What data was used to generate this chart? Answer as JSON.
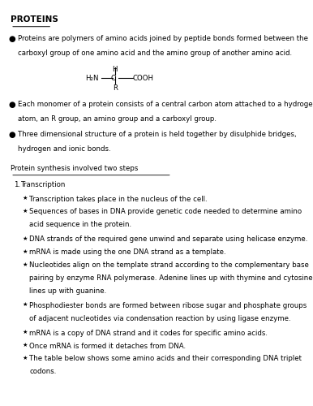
{
  "bg_color": "#ffffff",
  "title": "PROTEINS",
  "bullet1_line1": "Proteins are polymers of amino acids joined by peptide bonds formed between the",
  "bullet1_line2": "carboxyl group of one amino acid and the amino group of another amino acid.",
  "bullet2_line1": "Each monomer of a protein consists of a central carbon atom attached to a hydrogen",
  "bullet2_line2": "atom, an R group, an amino group and a carboxyl group.",
  "bullet3_line1": "Three dimensional structure of a protein is held together by disulphide bridges,",
  "bullet3_line2": "hydrogen and ionic bonds.",
  "subheading": "Protein synthesis involved two steps",
  "numbered1": "Transcription",
  "sub_bullets": [
    "Transcription takes place in the nucleus of the cell.",
    "Sequences of bases in DNA provide genetic code needed to determine amino\nacid sequence in the protein.",
    "DNA strands of the required gene unwind and separate using helicase enzyme.",
    "mRNA is made using the one DNA strand as a template.",
    "Nucleotides align on the template strand according to the complementary base\npairing by enzyme RNA polymerase. Adenine lines up with thymine and cytosine\nlines up with guanine.",
    "Phosphodiester bonds are formed between ribose sugar and phosphate groups\nof adjacent nucleotides via condensation reaction by using ligase enzyme.",
    "mRNA is a copy of DNA strand and it codes for specific amino acids.",
    "Once mRNA is formed it detaches from DNA.",
    "The table below shows some amino acids and their corresponding DNA triplet\ncodons."
  ],
  "font_size_title": 7.5,
  "font_size_body": 6.2
}
